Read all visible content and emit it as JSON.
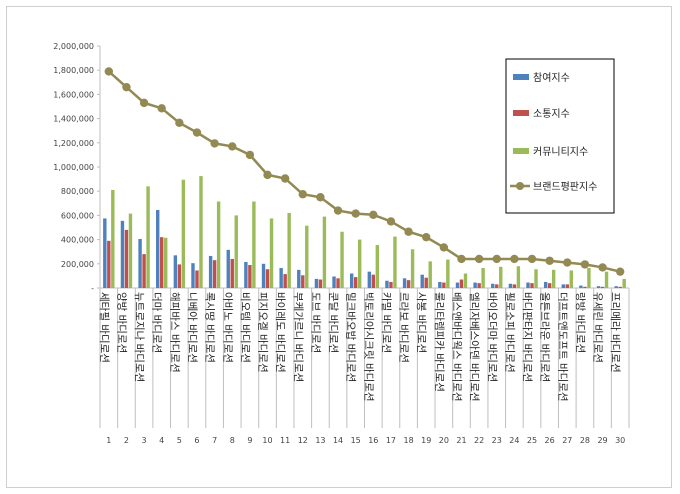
{
  "chart_data": {
    "type": "bar",
    "title": "",
    "xlabel": "",
    "ylabel": "",
    "ylim": [
      0,
      2000000
    ],
    "yticks": [
      "-",
      "200,000",
      "400,000",
      "600,000",
      "800,000",
      "1,000,000",
      "1,200,000",
      "1,400,000",
      "1,600,000",
      "1,800,000",
      "2,000,000"
    ],
    "grid": false,
    "legend_position": "right",
    "categories": [
      "세타필 바디로션",
      "양방 바디로션",
      "뉴트로지나 바디로션",
      "더마 바디로션",
      "해피바스 바디로션",
      "니베아 바디로션",
      "록시땅 바디로션",
      "아비노 바디로션",
      "비오템 바디로션",
      "피지오겔 바디로션",
      "바이레도 바디로션",
      "부케가르니 바디로션",
      "도브 바디로션",
      "쿤달 바디로션",
      "밀크바오밥 바디로션",
      "빅토리아시크릿 바디로션",
      "카밀 바디로션",
      "르라보 바디로션",
      "사봉 바디로션",
      "룰리타렘피카 바디로션",
      "배스앤바디웍스 바디로션",
      "엘리자베스아덴 바디로션",
      "바이오더마 바디로션",
      "필로소피 바디로션",
      "바디판타지 바디로션",
      "올튼브라운 바디로션",
      "더프트앤도프트 바디로션",
      "랑방 바디로션",
      "유세린 바디로션",
      "프리메라 바디로션"
    ],
    "index_labels": [
      "1",
      "2",
      "3",
      "4",
      "5",
      "6",
      "7",
      "8",
      "9",
      "10",
      "11",
      "12",
      "13",
      "14",
      "15",
      "16",
      "17",
      "18",
      "19",
      "20",
      "21",
      "22",
      "23",
      "24",
      "25",
      "26",
      "27",
      "28",
      "29",
      "30"
    ],
    "series": [
      {
        "name": "참여지수",
        "type": "bar",
        "color": "#4f81bd",
        "values": [
          575000,
          555000,
          405000,
          645000,
          270000,
          205000,
          265000,
          315000,
          215000,
          200000,
          165000,
          150000,
          75000,
          95000,
          120000,
          135000,
          60000,
          80000,
          110000,
          50000,
          45000,
          45000,
          35000,
          35000,
          45000,
          50000,
          30000,
          20000,
          15000,
          15000
        ]
      },
      {
        "name": "소통지수",
        "type": "bar",
        "color": "#c0504d",
        "values": [
          390000,
          480000,
          280000,
          420000,
          195000,
          145000,
          230000,
          240000,
          190000,
          155000,
          115000,
          105000,
          70000,
          80000,
          90000,
          110000,
          50000,
          65000,
          85000,
          45000,
          70000,
          40000,
          30000,
          30000,
          40000,
          40000,
          30000,
          10000,
          10000,
          10000
        ]
      },
      {
        "name": "커뮤니티지수",
        "type": "bar",
        "color": "#9bbb59",
        "values": [
          810000,
          615000,
          840000,
          415000,
          895000,
          925000,
          715000,
          600000,
          715000,
          575000,
          620000,
          515000,
          590000,
          465000,
          400000,
          355000,
          425000,
          320000,
          220000,
          235000,
          120000,
          165000,
          175000,
          180000,
          155000,
          150000,
          145000,
          165000,
          135000,
          75000
        ]
      },
      {
        "name": "브랜드평판지수",
        "type": "line",
        "color": "#938953",
        "values": [
          1790000,
          1660000,
          1530000,
          1485000,
          1365000,
          1285000,
          1195000,
          1170000,
          1100000,
          935000,
          905000,
          775000,
          750000,
          640000,
          615000,
          605000,
          550000,
          465000,
          420000,
          335000,
          240000,
          240000,
          240000,
          240000,
          240000,
          225000,
          210000,
          195000,
          170000,
          135000
        ]
      }
    ]
  }
}
